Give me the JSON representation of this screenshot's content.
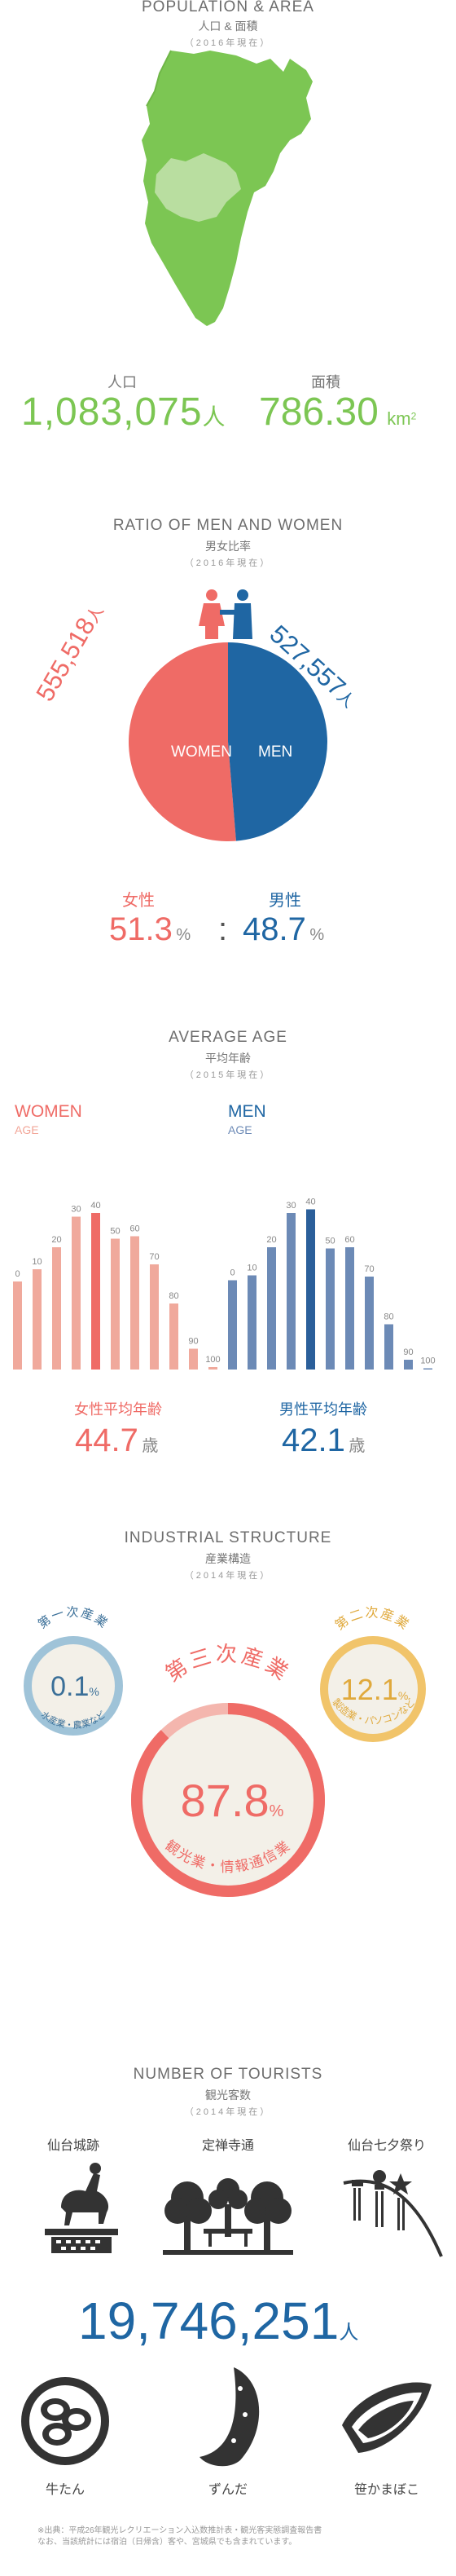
{
  "population_area": {
    "title": "POPULATION & AREA",
    "subtitle": "人口 & 面積",
    "year": "（2016年現在）",
    "population_label": "人口",
    "population_value": "1,083,075",
    "population_unit": "人",
    "area_label": "面積",
    "area_value": "786.30",
    "area_unit": "km",
    "area_unit_sup": "2",
    "colors": {
      "map_main": "#7cc653",
      "map_highlight": "#b9dea0"
    }
  },
  "gender_ratio": {
    "title": "RATIO OF MEN AND WOMEN",
    "subtitle": "男女比率",
    "year": "（2016年現在）",
    "women_count": "555,518",
    "women_unit": "人",
    "men_count": "527,557",
    "men_unit": "人",
    "women_label": "WOMEN",
    "men_label": "MEN",
    "women_jp": "女性",
    "men_jp": "男性",
    "women_pct": "51.3",
    "men_pct": "48.7",
    "pct_unit": "%",
    "separator": ":",
    "colors": {
      "women": "#ef6b66",
      "men": "#1f66a3"
    }
  },
  "chart_data": [
    {
      "type": "pie",
      "labels": [
        "WOMEN",
        "MEN"
      ],
      "values": [
        51.3,
        48.7
      ],
      "colors": [
        "#ef6b66",
        "#1f66a3"
      ]
    },
    {
      "type": "bar",
      "title": "WOMEN",
      "xlabel": "AGE",
      "categories": [
        "0",
        "10",
        "20",
        "30",
        "40",
        "50",
        "60",
        "70",
        "80",
        "90",
        "100"
      ],
      "values": [
        0.72,
        0.82,
        1.0,
        1.25,
        1.28,
        1.07,
        1.09,
        0.86,
        0.54,
        0.17,
        0.02
      ],
      "highlight": [
        "40"
      ],
      "colors": {
        "bar": "#f0a99c",
        "highlight": "#ef6b66"
      }
    },
    {
      "type": "bar",
      "title": "MEN",
      "xlabel": "AGE",
      "categories": [
        "0",
        "10",
        "20",
        "30",
        "40",
        "50",
        "60",
        "70",
        "80",
        "90",
        "100"
      ],
      "values": [
        0.73,
        0.77,
        1.0,
        1.28,
        1.31,
        0.99,
        1.0,
        0.76,
        0.37,
        0.08,
        0.01
      ],
      "highlight": [
        "40"
      ],
      "colors": {
        "bar": "#6c8ab6",
        "highlight": "#2b5f9a"
      }
    },
    {
      "type": "pie",
      "labels": [
        "第一次産業",
        "第二次産業",
        "第三次産業"
      ],
      "values": [
        0.1,
        12.1,
        87.8
      ],
      "colors": [
        "#9fc3d8",
        "#f1c46a",
        "#ef6b66"
      ]
    }
  ],
  "average_age": {
    "title": "AVERAGE AGE",
    "subtitle": "平均年齢",
    "year": "（2015年現在）",
    "women_title": "WOMEN",
    "men_title": "MEN",
    "age_label": "AGE",
    "women_avg_label": "女性平均年齢",
    "women_avg": "44.7",
    "men_avg_label": "男性平均年齢",
    "men_avg": "42.1",
    "unit": "歳"
  },
  "industry": {
    "title": "INDUSTRIAL STRUCTURE",
    "subtitle": "産業構造",
    "year": "（2014年現在）",
    "primary": {
      "label": "第一次産業",
      "value": "0.1",
      "unit": "%",
      "desc": "水産業・農業など",
      "color": "#9fc3d8"
    },
    "secondary": {
      "label": "第二次産業",
      "value": "12.1",
      "unit": "%",
      "desc": "製造業・パソコンなど",
      "color": "#f1c46a"
    },
    "tertiary": {
      "label": "第三次産業",
      "value": "87.8",
      "unit": "%",
      "desc": "観光業・情報通信業",
      "color": "#ef6b66"
    },
    "circle_fill": "#f3f0e8"
  },
  "tourists": {
    "title": "NUMBER OF TOURISTS",
    "subtitle": "観光客数",
    "year": "（2014年現在）",
    "spots": [
      "仙台城跡",
      "定禅寺通",
      "仙台七夕祭り"
    ],
    "spot_icons": [
      "castle-statue-icon",
      "tree-lined-street-icon",
      "tanabata-decoration-icon"
    ],
    "total": "19,746,251",
    "unit": "人",
    "foods": [
      "牛たん",
      "ずんだ",
      "笹かまぼこ"
    ],
    "food_icons": [
      "beef-tongue-icon",
      "zunda-icon",
      "sasakamaboko-icon"
    ],
    "footnote_line1": "※出典：平成26年観光レクリエーション入込数推計表・観光客実態調査報告書",
    "footnote_line2": "なお、当該統計には宿泊（日帰含）客や、宮城県でも含まれています。"
  }
}
